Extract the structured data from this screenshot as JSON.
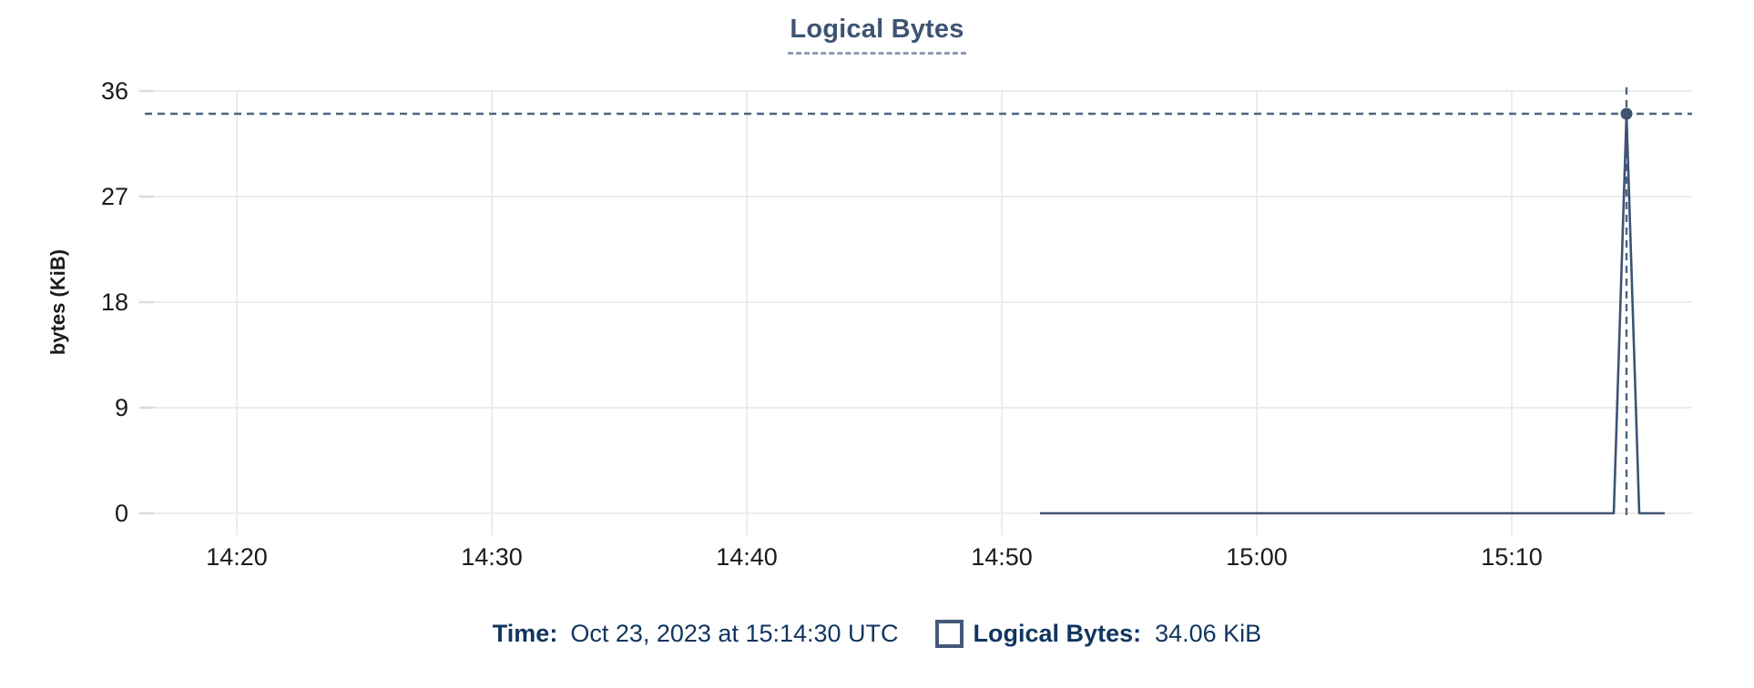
{
  "colors": {
    "title": "#3e5473",
    "underline": "#8f9cb5",
    "line": "#3e5372",
    "point": "#3e5372",
    "crosshair": "#4d6480",
    "tooltip_text": "#10355f",
    "legend_box": "#44597a",
    "gridline": "#ececec",
    "grid_tick": "#dcdcdc",
    "axis_text": "#1b1b1b"
  },
  "chart_data": {
    "type": "line",
    "title": "Logical Bytes",
    "xlabel": "",
    "ylabel": "bytes (KiB)",
    "ylim": [
      0,
      36
    ],
    "y_ticks": [
      36,
      27,
      18,
      9,
      0
    ],
    "x_ticks": [
      "14:20",
      "14:30",
      "14:40",
      "14:50",
      "15:00",
      "15:10"
    ],
    "grid": true,
    "legend_position": "bottom",
    "series": [
      {
        "name": "Logical Bytes",
        "unit": "KiB",
        "points": [
          [
            "14:51:30",
            0
          ],
          [
            "15:14:00",
            0
          ],
          [
            "15:14:30",
            34.06
          ],
          [
            "15:15:00",
            0
          ],
          [
            "15:16:00",
            0
          ]
        ]
      }
    ],
    "selected_point": {
      "time": "15:14:30",
      "value": 34.06
    }
  },
  "tooltip": {
    "time_label": "Time:",
    "time_value": "Oct 23, 2023 at 15:14:30 UTC",
    "series_label": "Logical Bytes:",
    "series_value": "34.06 KiB"
  }
}
